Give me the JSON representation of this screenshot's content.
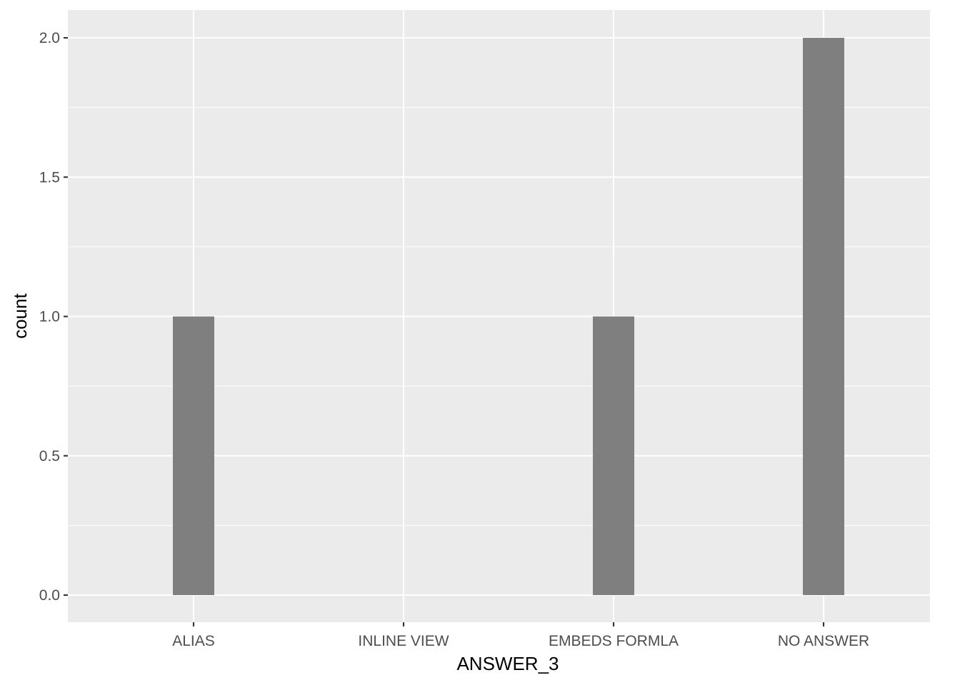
{
  "chart_data": {
    "type": "bar",
    "categories": [
      "ALIAS",
      "INLINE VIEW",
      "EMBEDS FORMLA",
      "NO ANSWER"
    ],
    "values": [
      1,
      0,
      1,
      2
    ],
    "title": "",
    "xlabel": "ANSWER_3",
    "ylabel": "count",
    "ylim": [
      0,
      2
    ],
    "yticks": [
      "0.0",
      "0.5",
      "1.0",
      "1.5",
      "2.0"
    ],
    "grid": true,
    "legend": "none",
    "colors": {
      "panel": "#ebebeb",
      "bar": "#7f7f7f",
      "grid": "#ffffff",
      "tick_label": "#4d4d4d",
      "axis_title": "#000000"
    }
  }
}
